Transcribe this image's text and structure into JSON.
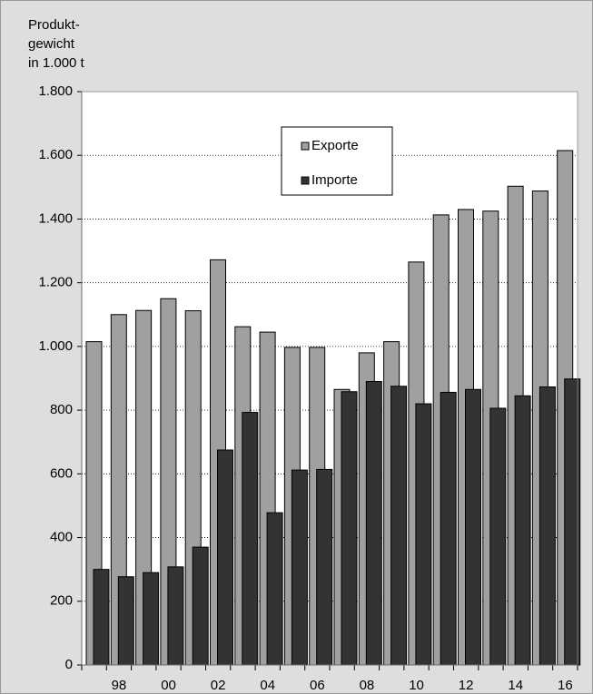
{
  "chart_data": {
    "type": "bar",
    "y_label": [
      "Produkt-",
      "gewicht",
      "in 1.000 t"
    ],
    "categories": [
      null,
      "98",
      null,
      "00",
      null,
      "02",
      null,
      "04",
      null,
      "06",
      null,
      "08",
      null,
      "10",
      null,
      "12",
      null,
      "14",
      null,
      "16"
    ],
    "series": [
      {
        "name": "Exporte",
        "color": "#a0a0a0",
        "values": [
          1015,
          1100,
          1113,
          1150,
          1112,
          1272,
          1062,
          1045,
          997,
          997,
          865,
          980,
          1015,
          1265,
          1413,
          1430,
          1425,
          1503,
          1488,
          1615
        ]
      },
      {
        "name": "Importe",
        "color": "#333333",
        "values": [
          300,
          277,
          290,
          308,
          370,
          675,
          793,
          478,
          612,
          614,
          858,
          890,
          875,
          820,
          856,
          865,
          806,
          845,
          873,
          898
        ]
      }
    ],
    "ylim": [
      0,
      1800
    ],
    "yticks": [
      0,
      200,
      400,
      600,
      800,
      {
        "value": 1000,
        "label": "1.000"
      },
      {
        "value": 1200,
        "label": "1.200"
      },
      {
        "value": 1400,
        "label": "1.400"
      },
      {
        "value": 1600,
        "label": "1.600"
      },
      {
        "value": 1800,
        "label": "1.800"
      }
    ],
    "grid": true
  }
}
